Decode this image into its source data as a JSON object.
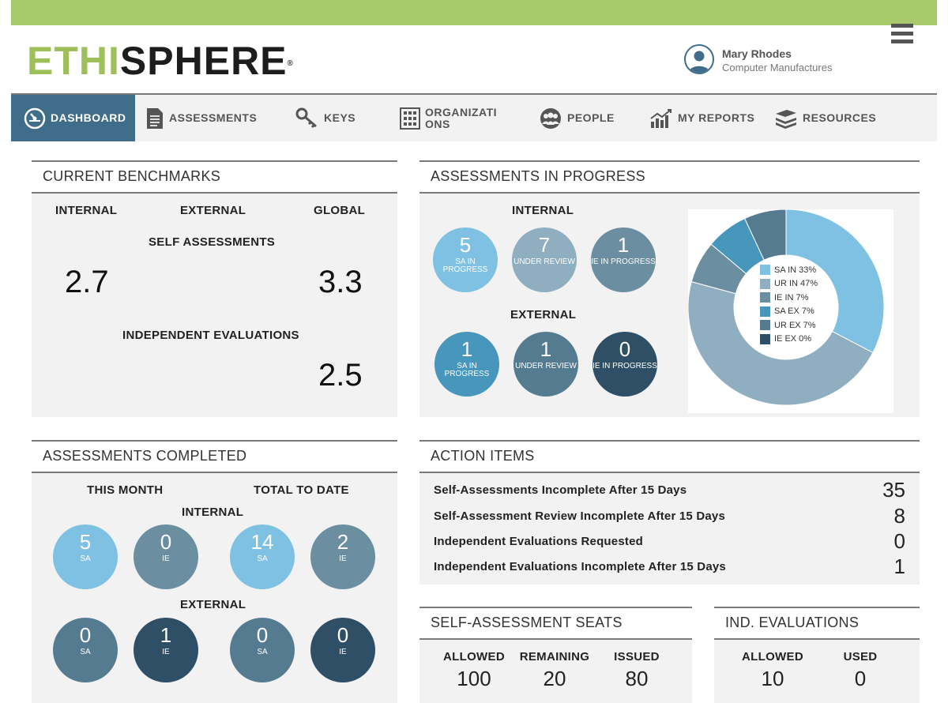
{
  "brand": {
    "logo_green": "ETHI",
    "logo_dark": "SPHERE",
    "logo_reg": "®"
  },
  "user": {
    "name": "Mary Rhodes",
    "org": "Computer Manufactures"
  },
  "nav": [
    {
      "label": "DASHBOARD",
      "icon": "dashboard-icon"
    },
    {
      "label": "ASSESSMENTS",
      "icon": "document-icon"
    },
    {
      "label": "KEYS",
      "icon": "key-icon"
    },
    {
      "label": "ORGANIZATI ONS",
      "icon": "building-icon"
    },
    {
      "label": "PEOPLE",
      "icon": "people-icon"
    },
    {
      "label": "MY REPORTS",
      "icon": "chart-icon"
    },
    {
      "label": "RESOURCES",
      "icon": "books-icon"
    }
  ],
  "benchmarks": {
    "title": "CURRENT BENCHMARKS",
    "col_internal": "INTERNAL",
    "col_external": "EXTERNAL",
    "col_global": "GLOBAL",
    "self_label": "SELF ASSESSMENTS",
    "self_internal": "2.7",
    "self_global": "3.3",
    "indep_label": "INDEPENDENT EVALUATIONS",
    "indep_global": "2.5"
  },
  "progress": {
    "title": "ASSESSMENTS IN PROGRESS",
    "internal_label": "INTERNAL",
    "external_label": "EXTERNAL",
    "internal": [
      {
        "value": "5",
        "caption": "SA IN PROGRESS"
      },
      {
        "value": "7",
        "caption": "UNDER REVIEW"
      },
      {
        "value": "1",
        "caption": "IE IN PROGRESS"
      }
    ],
    "external": [
      {
        "value": "1",
        "caption": "SA IN PROGRESS"
      },
      {
        "value": "1",
        "caption": "UNDER REVIEW"
      },
      {
        "value": "0",
        "caption": "IE IN PROGRESS"
      }
    ]
  },
  "chart_data": {
    "type": "pie",
    "variant": "donut",
    "legend_placement": "center",
    "categories": [
      "SA IN 33%",
      "UR IN 47%",
      "IE IN 7%",
      "SA EX 7%",
      "UR EX 7%",
      "IE EX 0%"
    ],
    "values": [
      33,
      47,
      7,
      7,
      7,
      0
    ],
    "colors": [
      "#7fc1e2",
      "#8faebf",
      "#6b8ea0",
      "#4796bb",
      "#547b90",
      "#2f4f66"
    ]
  },
  "completed": {
    "title": "ASSESSMENTS COMPLETED",
    "this_month": "THIS MONTH",
    "total_to_date": "TOTAL TO DATE",
    "internal_label": "INTERNAL",
    "external_label": "EXTERNAL",
    "internal": [
      {
        "value": "5",
        "caption": "SA"
      },
      {
        "value": "0",
        "caption": "IE"
      },
      {
        "value": "14",
        "caption": "SA"
      },
      {
        "value": "2",
        "caption": "IE"
      }
    ],
    "external": [
      {
        "value": "0",
        "caption": "SA"
      },
      {
        "value": "1",
        "caption": "IE"
      },
      {
        "value": "0",
        "caption": "SA"
      },
      {
        "value": "0",
        "caption": "IE"
      }
    ]
  },
  "actions": {
    "title": "ACTION ITEMS",
    "items": [
      {
        "label": "Self-Assessments Incomplete After 15 Days",
        "value": "35"
      },
      {
        "label": "Self-Assessment Review Incomplete After 15 Days",
        "value": "8"
      },
      {
        "label": "Independent Evaluations Requested",
        "value": "0"
      },
      {
        "label": "Independent Evaluations Incomplete After 15 Days",
        "value": "1"
      }
    ]
  },
  "seats": {
    "title": "SELF-ASSESSMENT SEATS",
    "allowed_label": "ALLOWED",
    "allowed": "100",
    "remaining_label": "REMAINING",
    "remaining": "20",
    "issued_label": "ISSUED",
    "issued": "80"
  },
  "ind_eval": {
    "title": "IND. EVALUATIONS",
    "allowed_label": "ALLOWED",
    "allowed": "10",
    "used_label": "USED",
    "used": "0"
  },
  "colors": {
    "accent_green": "#a8c96a",
    "nav_active": "#3f6d8a",
    "circle_light": "#7fc1e2",
    "circle_mid": "#6b8ea0",
    "circle_dark": "#2f4f66"
  }
}
